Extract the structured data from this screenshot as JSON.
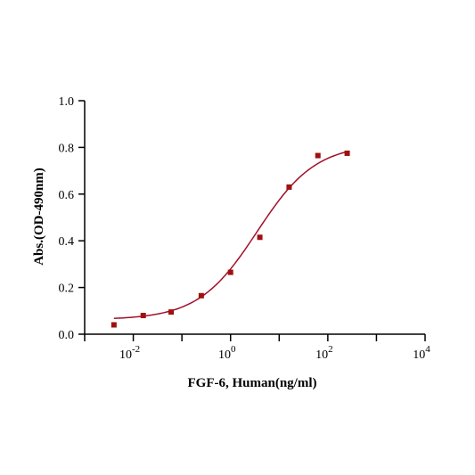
{
  "chart_data": {
    "type": "scatter",
    "title": "",
    "xlabel": "FGF-6, Human(ng/ml)",
    "ylabel": "Abs.(OD-490nm)",
    "x_scale": "log10",
    "xlim": [
      0.001,
      10000
    ],
    "ylim": [
      0,
      1.0
    ],
    "x_ticks": [
      {
        "value": 0.01,
        "base": "10",
        "exp": "-2"
      },
      {
        "value": 1,
        "base": "10",
        "exp": "0"
      },
      {
        "value": 100,
        "base": "10",
        "exp": "2"
      },
      {
        "value": 10000,
        "base": "10",
        "exp": "4"
      }
    ],
    "y_ticks": [
      "0.0",
      "0.2",
      "0.4",
      "0.6",
      "0.8",
      "1.0"
    ],
    "grid": false,
    "legend": "none",
    "colors": {
      "points": "#a01010",
      "curve": "#a0102a",
      "axis": "#000000"
    },
    "series": [
      {
        "marker": "square",
        "x": [
          0.004,
          0.016,
          0.06,
          0.25,
          1,
          4,
          16,
          62.5,
          250
        ],
        "y": [
          0.04,
          0.08,
          0.095,
          0.165,
          0.265,
          0.415,
          0.63,
          0.765,
          0.775
        ]
      }
    ],
    "fit_curve": {
      "model": "4PL",
      "bottom": 0.062,
      "top": 0.815,
      "ec50": 3.5,
      "hill": 0.72,
      "x_range": [
        0.004,
        250
      ]
    }
  }
}
